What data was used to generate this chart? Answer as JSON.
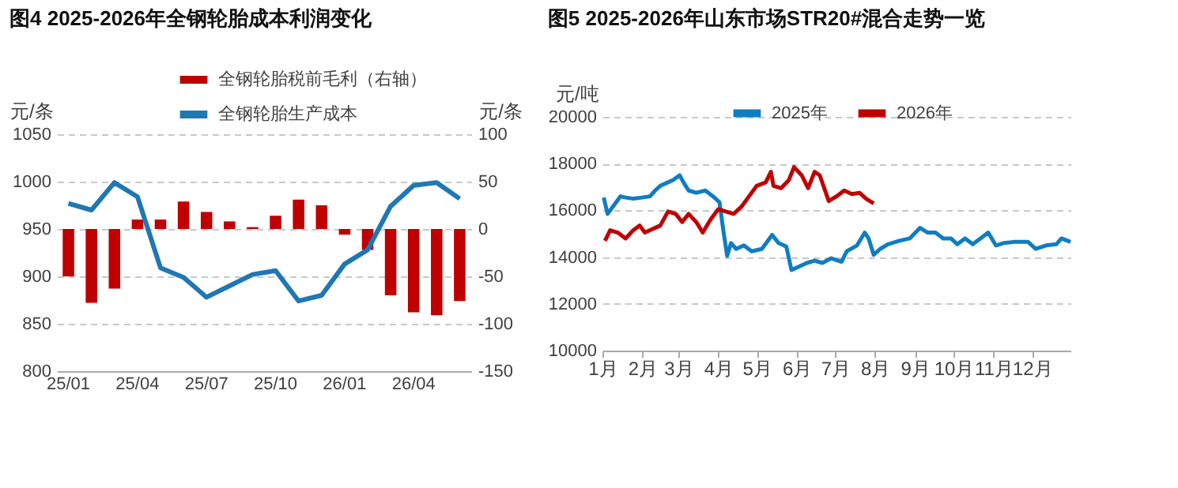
{
  "chart_data": [
    {
      "type": "bar",
      "title": "图4  2025-2026年全钢轮胎成本利润变化",
      "categories": [
        "25/01",
        null,
        null,
        "25/04",
        null,
        null,
        "25/07",
        null,
        null,
        "25/10",
        null,
        null,
        "26/01",
        null,
        null,
        "26/04",
        null,
        null
      ],
      "series": [
        {
          "name": "全钢轮胎税前毛利（右轴）",
          "type": "bar",
          "axis": "y2",
          "color": "#c00000",
          "values": [
            -50,
            -78,
            -63,
            10,
            10,
            29,
            18,
            8,
            2,
            14,
            31,
            25,
            -6,
            -22,
            -70,
            -88,
            -91,
            -76
          ]
        },
        {
          "name": "全钢轮胎生产成本",
          "type": "line",
          "color": "#1f77b4",
          "values": [
            977,
            970,
            999,
            984,
            909,
            899,
            878,
            890,
            902,
            906,
            874,
            880,
            913,
            928,
            974,
            996,
            999,
            982
          ]
        }
      ],
      "ylabel": "元/条",
      "y2label": "元/条",
      "ylim": [
        800,
        1050
      ],
      "yticks": [
        800,
        850,
        900,
        950,
        1000,
        1050
      ],
      "y2lim": [
        -150,
        100
      ],
      "y2ticks": [
        -150,
        -100,
        -50,
        0,
        50,
        100
      ],
      "grid": "y",
      "legend": "top"
    },
    {
      "type": "line",
      "title": "图5  2025-2026年山东市场STR20#混合走势一览",
      "ylabel": "元/吨",
      "xlim": [
        "--01-01",
        "--12-31"
      ],
      "xticks": [
        {
          "value": "--01-01",
          "label": "1月"
        },
        {
          "value": "--02-01",
          "label": "2月"
        },
        {
          "value": "--03-01",
          "label": "3月"
        },
        {
          "value": "--04-01",
          "label": "4月"
        },
        {
          "value": "--05-01",
          "label": "5月"
        },
        {
          "value": "--06-01",
          "label": "6月"
        },
        {
          "value": "--07-01",
          "label": "7月"
        },
        {
          "value": "--08-01",
          "label": "8月"
        },
        {
          "value": "--09-01",
          "label": "9月"
        },
        {
          "value": "--10-01",
          "label": "10月"
        },
        {
          "value": "--11-01",
          "label": "11月"
        },
        {
          "value": "--12-01",
          "label": "12月"
        }
      ],
      "ylim": [
        10000,
        20000
      ],
      "yticks": [
        10000,
        12000,
        14000,
        16000,
        18000,
        20000
      ],
      "grid": "y",
      "legend": "top",
      "series": [
        {
          "name": "2025年",
          "color": "#0f7dc2",
          "x": [
            "--01-02",
            "--01-05",
            "--01-09",
            "--01-15",
            "--01-19",
            "--01-25",
            "--02-01",
            "--02-07",
            "--02-11",
            "--02-15",
            "--02-21",
            "--02-25",
            "--03-02",
            "--03-05",
            "--03-09",
            "--03-15",
            "--03-22",
            "--03-28",
            "--04-02",
            "--04-05",
            "--04-08",
            "--04-11",
            "--04-15",
            "--04-21",
            "--04-27",
            "--05-05",
            "--05-13",
            "--05-18",
            "--05-24",
            "--05-28",
            "--06-03",
            "--06-09",
            "--06-15",
            "--06-21",
            "--06-28",
            "--07-06",
            "--07-10",
            "--07-18",
            "--07-24",
            "--07-27",
            "--07-31",
            "--08-05",
            "--08-11",
            "--08-20",
            "--08-28",
            "--09-05",
            "--09-11",
            "--09-17",
            "--09-23",
            "--09-29",
            "--10-04",
            "--10-10",
            "--10-16",
            "--10-22",
            "--10-28",
            "--11-03",
            "--11-09",
            "--11-17",
            "--11-28",
            "--12-04",
            "--12-12",
            "--12-20",
            "--12-24",
            "--12-31"
          ],
          "values": [
            16550,
            15850,
            16150,
            16600,
            16550,
            16500,
            16550,
            16600,
            16850,
            17050,
            17200,
            17300,
            17500,
            17200,
            16850,
            16750,
            16850,
            16600,
            16350,
            15150,
            14050,
            14600,
            14350,
            14500,
            14250,
            14350,
            14950,
            14600,
            14450,
            13450,
            13600,
            13750,
            13850,
            13750,
            13950,
            13800,
            14250,
            14500,
            15050,
            14800,
            14100,
            14350,
            14550,
            14700,
            14800,
            15250,
            15050,
            15050,
            14800,
            14800,
            14550,
            14800,
            14550,
            14800,
            15050,
            14500,
            14600,
            14650,
            14650,
            14350,
            14500,
            14550,
            14800,
            14650
          ]
        },
        {
          "name": "2026年",
          "color": "#c00000",
          "x": [
            "--01-03",
            "--01-07",
            "--01-13",
            "--01-19",
            "--01-25",
            "--01-30",
            "--02-03",
            "--02-09",
            "--02-15",
            "--02-21",
            "--02-27",
            "--03-04",
            "--03-09",
            "--03-15",
            "--03-20",
            "--03-26",
            "--04-01",
            "--04-07",
            "--04-13",
            "--04-19",
            "--04-25",
            "--05-01",
            "--05-08",
            "--05-12",
            "--05-14",
            "--05-20",
            "--05-26",
            "--05-30",
            "--06-05",
            "--06-10",
            "--06-15",
            "--06-19",
            "--06-26",
            "--07-02",
            "--07-08",
            "--07-14",
            "--07-20",
            "--07-25",
            "--07-31"
          ],
          "values": [
            14700,
            15150,
            15050,
            14800,
            15150,
            15350,
            15050,
            15200,
            15350,
            15950,
            15850,
            15500,
            15850,
            15500,
            15050,
            15600,
            16050,
            15950,
            15850,
            16150,
            16600,
            17050,
            17200,
            17650,
            17050,
            16950,
            17300,
            17850,
            17500,
            16950,
            17650,
            17500,
            16400,
            16600,
            16850,
            16700,
            16750,
            16500,
            16300
          ]
        }
      ]
    }
  ]
}
